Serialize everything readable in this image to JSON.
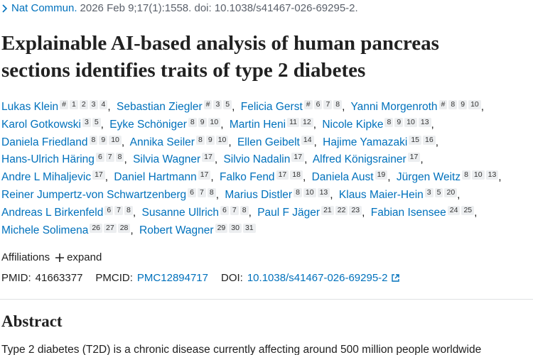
{
  "citation": {
    "journal": "Nat Commun.",
    "details": "2026 Feb 9;17(1):1558. doi: 10.1038/s41467-026-69295-2."
  },
  "title": "Explainable AI-based analysis of human pancreas sections identifies traits of type 2 diabetes",
  "authors": {
    "separator": ",",
    "list": [
      {
        "name": "Lukas Klein",
        "sups": [
          "#",
          "1",
          "2",
          "3",
          "4"
        ]
      },
      {
        "name": "Sebastian Ziegler",
        "sups": [
          "#",
          "3",
          "5"
        ]
      },
      {
        "name": "Felicia Gerst",
        "sups": [
          "#",
          "6",
          "7",
          "8"
        ]
      },
      {
        "name": "Yanni Morgenroth",
        "sups": [
          "#",
          "8",
          "9",
          "10"
        ]
      },
      {
        "name": "Karol Gotkowski",
        "sups": [
          "3",
          "5"
        ]
      },
      {
        "name": "Eyke Schöniger",
        "sups": [
          "8",
          "9",
          "10"
        ]
      },
      {
        "name": "Martin Heni",
        "sups": [
          "11",
          "12"
        ]
      },
      {
        "name": "Nicole Kipke",
        "sups": [
          "8",
          "9",
          "10",
          "13"
        ]
      },
      {
        "name": "Daniela Friedland",
        "sups": [
          "8",
          "9",
          "10"
        ]
      },
      {
        "name": "Annika Seiler",
        "sups": [
          "8",
          "9",
          "10"
        ]
      },
      {
        "name": "Ellen Geibelt",
        "sups": [
          "14"
        ]
      },
      {
        "name": "Hajime Yamazaki",
        "sups": [
          "15",
          "16"
        ]
      },
      {
        "name": "Hans-Ulrich Häring",
        "sups": [
          "6",
          "7",
          "8"
        ]
      },
      {
        "name": "Silvia Wagner",
        "sups": [
          "17"
        ]
      },
      {
        "name": "Silvio Nadalin",
        "sups": [
          "17"
        ]
      },
      {
        "name": "Alfred Königsrainer",
        "sups": [
          "17"
        ]
      },
      {
        "name": "Andre L Mihaljevic",
        "sups": [
          "17"
        ]
      },
      {
        "name": "Daniel Hartmann",
        "sups": [
          "17"
        ]
      },
      {
        "name": "Falko Fend",
        "sups": [
          "17",
          "18"
        ]
      },
      {
        "name": "Daniela Aust",
        "sups": [
          "19"
        ]
      },
      {
        "name": "Jürgen Weitz",
        "sups": [
          "8",
          "10",
          "13"
        ]
      },
      {
        "name": "Reiner Jumpertz-von Schwartzenberg",
        "sups": [
          "6",
          "7",
          "8"
        ]
      },
      {
        "name": "Marius Distler",
        "sups": [
          "8",
          "10",
          "13"
        ]
      },
      {
        "name": "Klaus Maier-Hein",
        "sups": [
          "3",
          "5",
          "20"
        ]
      },
      {
        "name": "Andreas L Birkenfeld",
        "sups": [
          "6",
          "7",
          "8"
        ]
      },
      {
        "name": "Susanne Ullrich",
        "sups": [
          "6",
          "7",
          "8"
        ]
      },
      {
        "name": "Paul F Jäger",
        "sups": [
          "21",
          "22",
          "23"
        ]
      },
      {
        "name": "Fabian Isensee",
        "sups": [
          "24",
          "25"
        ]
      },
      {
        "name": "Michele Solimena",
        "sups": [
          "26",
          "27",
          "28"
        ]
      },
      {
        "name": "Robert Wagner",
        "sups": [
          "29",
          "30",
          "31"
        ]
      }
    ]
  },
  "affiliations": {
    "label": "Affiliations",
    "action": "expand"
  },
  "identifiers": {
    "pmid_label": "PMID:",
    "pmid": "41663377",
    "pmcid_label": "PMCID:",
    "pmcid": "PMC12894717",
    "doi_label": "DOI:",
    "doi": "10.1038/s41467-026-69295-2"
  },
  "abstract": {
    "heading": "Abstract",
    "text": "Type 2 diabetes (T2D) is a chronic disease currently affecting around 500 million people worldwide"
  }
}
